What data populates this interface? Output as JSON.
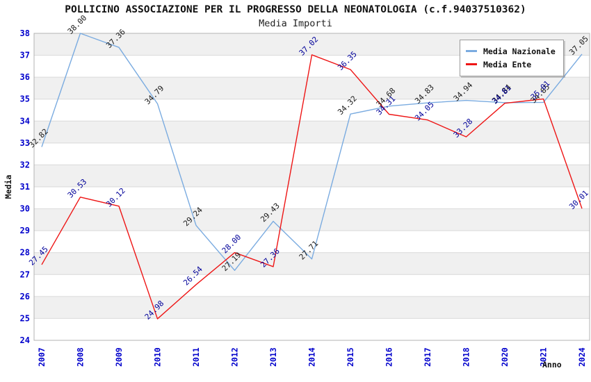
{
  "header": {
    "title": "POLLICINO ASSOCIAZIONE PER IL PROGRESSO DELLA NEONATOLOGIA (c.f.94037510362)",
    "subtitle": "Media Importi"
  },
  "legend": {
    "items": [
      {
        "label": "Media Nazionale",
        "color": "#7aabe0"
      },
      {
        "label": "Media Ente",
        "color": "#ee1515"
      }
    ]
  },
  "axes": {
    "y_label": "Media",
    "x_label": "Anno",
    "tick_color": "#0000cc"
  },
  "chart_data": {
    "type": "line",
    "title": "Media Importi",
    "xlabel": "Anno",
    "ylabel": "Media",
    "categories": [
      "2007",
      "2008",
      "2009",
      "2010",
      "2011",
      "2012",
      "2013",
      "2014",
      "2015",
      "2016",
      "2017",
      "2018",
      "2020",
      "2021",
      "2024"
    ],
    "series": [
      {
        "name": "Media Nazionale",
        "color": "#7aabe0",
        "label_color": "#1a1a1a",
        "values": [
          32.82,
          38.0,
          37.36,
          34.79,
          29.24,
          27.19,
          29.43,
          27.71,
          34.32,
          34.68,
          34.83,
          34.94,
          34.84,
          34.85,
          37.05
        ]
      },
      {
        "name": "Media Ente",
        "color": "#ee1515",
        "label_color": "#000099",
        "values": [
          27.45,
          30.53,
          30.12,
          24.98,
          26.54,
          28.0,
          27.36,
          37.02,
          36.35,
          34.31,
          34.05,
          33.28,
          34.81,
          35.01,
          30.01
        ]
      }
    ],
    "ylim": [
      24,
      38
    ],
    "y_ticks": [
      24,
      25,
      26,
      27,
      28,
      29,
      30,
      31,
      32,
      33,
      34,
      35,
      36,
      37,
      38
    ],
    "grid": true,
    "band_colors": [
      "#f0f0f0",
      "#ffffff"
    ],
    "grid_color": "#d9d9d9",
    "border_color": "#b3b3b3",
    "legend_position": "top-right"
  }
}
